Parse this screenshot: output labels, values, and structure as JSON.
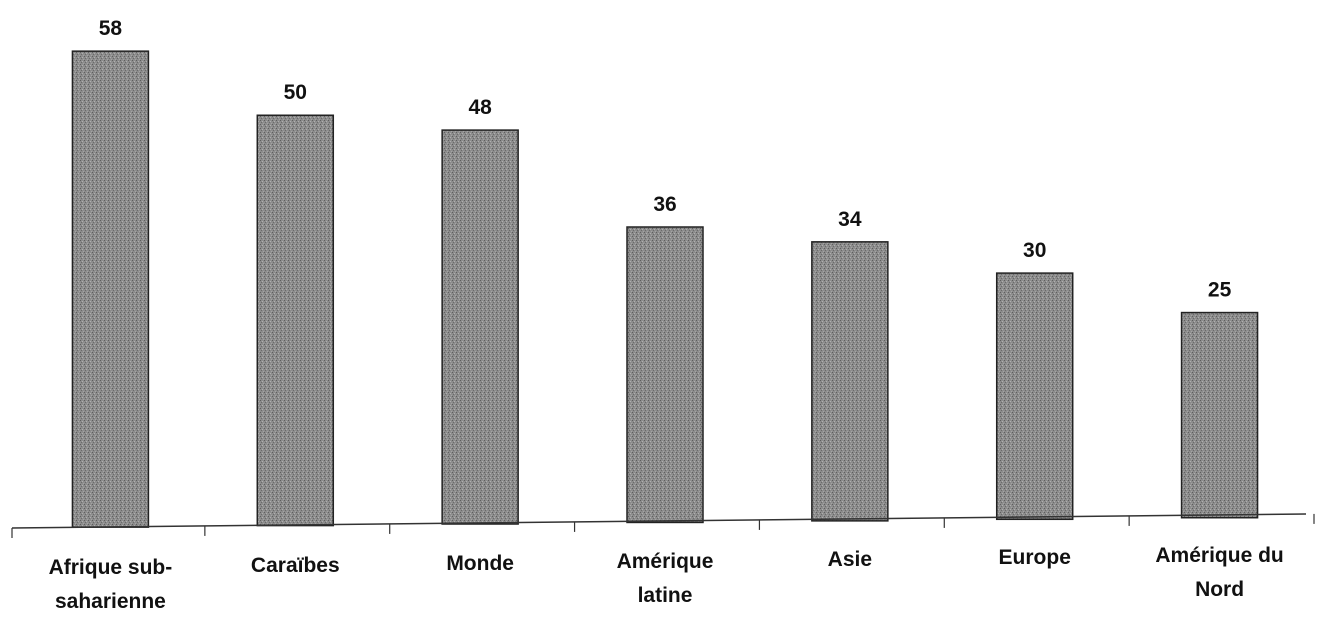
{
  "chart_data": {
    "type": "bar",
    "categories": [
      [
        "Afrique sub-",
        "saharienne"
      ],
      [
        "Caraïbes"
      ],
      [
        "Monde"
      ],
      [
        "Amérique",
        "latine"
      ],
      [
        "Asie"
      ],
      [
        "Europe"
      ],
      [
        "Amérique du",
        "Nord"
      ]
    ],
    "values": [
      58,
      50,
      48,
      36,
      34,
      30,
      25
    ],
    "data_labels": [
      "58",
      "50",
      "48",
      "36",
      "34",
      "30",
      "25"
    ],
    "ylim": [
      0,
      60
    ],
    "grid": false,
    "legend": "none",
    "bar_color": "#8a8a8a"
  }
}
